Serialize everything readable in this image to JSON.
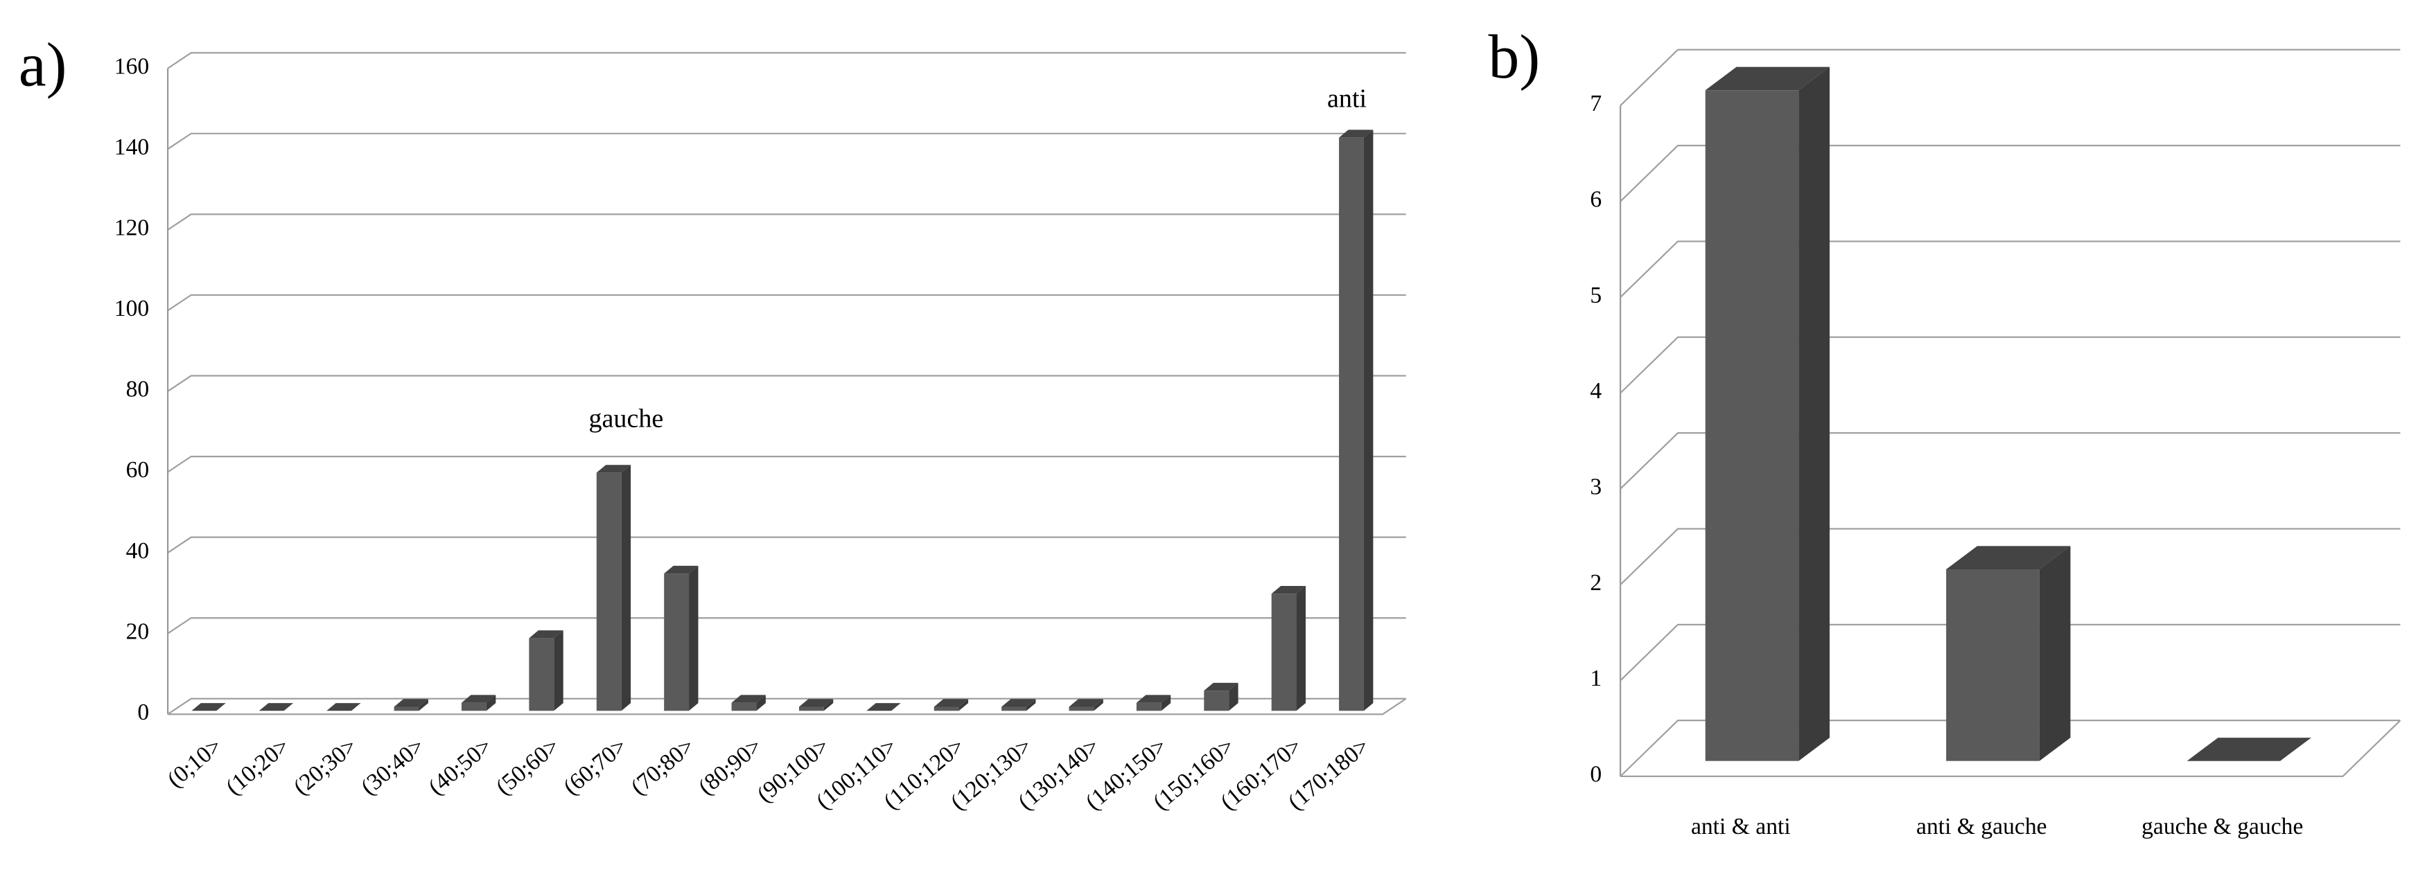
{
  "chart_data": [
    {
      "type": "bar",
      "panel_label": "a)",
      "categories": [
        "(0;10>",
        "(10;20>",
        "(20;30>",
        "(30;40>",
        "(40;50>",
        "(50;60>",
        "(60;70>",
        "(70;80>",
        "(80;90>",
        "(90;100>",
        "(100;110>",
        "(110;120>",
        "(120;130>",
        "(130;140>",
        "(140;150>",
        "(150;160>",
        "(160;170>",
        "(170;180>"
      ],
      "values": [
        0,
        0,
        0,
        1,
        2,
        18,
        59,
        34,
        2,
        1,
        0,
        1,
        1,
        1,
        2,
        5,
        29,
        142
      ],
      "annotations": [
        "gauche",
        "anti"
      ],
      "color": "#5a5a5a",
      "ylim": [
        0,
        160
      ],
      "yticks": [
        0,
        20,
        40,
        60,
        80,
        100,
        120,
        140,
        160
      ],
      "grid": true
    },
    {
      "type": "bar",
      "panel_label": "b)",
      "categories": [
        "anti & anti",
        "anti & gauche",
        "gauche & gauche"
      ],
      "values": [
        7,
        2,
        0
      ],
      "color": "#5a5a5a",
      "ylim": [
        0,
        7
      ],
      "yticks": [
        0,
        1,
        2,
        3,
        4,
        5,
        6,
        7
      ],
      "grid": true
    }
  ]
}
